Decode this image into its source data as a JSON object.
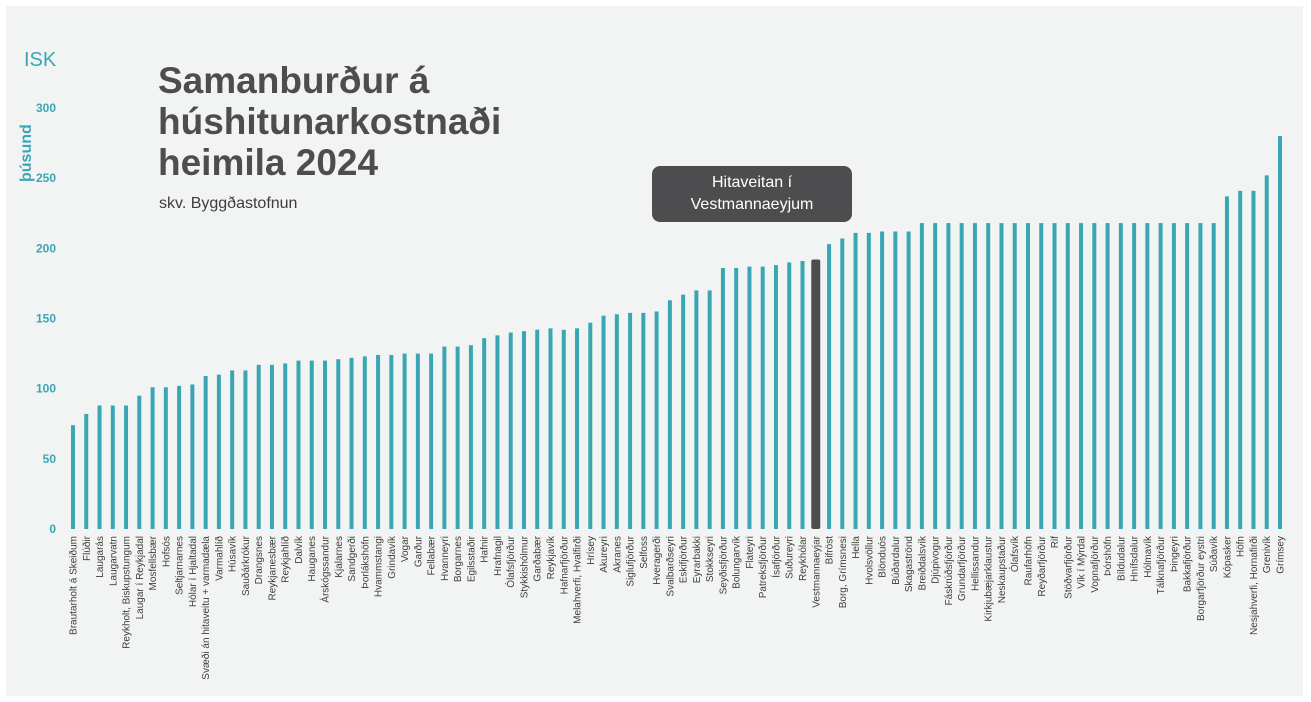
{
  "chart_data": {
    "type": "bar",
    "title_lines": [
      "Samanburður á",
      "húshitunarkostnaði",
      "heimila 2024"
    ],
    "subtitle": "skv. Byggðastofnun",
    "unit_label": "ISK",
    "ylabel": "þúsund",
    "ylim": [
      0,
      300
    ],
    "yticks": [
      0,
      50,
      100,
      150,
      200,
      250,
      300
    ],
    "grid": false,
    "highlight_category": "Vestmannaeyjar",
    "annotation": [
      "Hitaveitan í",
      "Vestmannaeyjum"
    ],
    "categories": [
      "Brautarholt á Skeiðum",
      "Flúðir",
      "Laugarás",
      "Laugarvatn",
      "Reykholt, Biskupstungum",
      "Laugar í Reykjadal",
      "Mosfellsbær",
      "Hofsós",
      "Seltjarnarnes",
      "Hólar í Hjaltadal",
      "Svæði án hitaveitu + varmadæla",
      "Varmahlíð",
      "Húsavík",
      "Sauðárkrókur",
      "Drangsnes",
      "Reykjanesbær",
      "Reykjahlíð",
      "Dalvík",
      "Hauganes",
      "Árskógssandur",
      "Kjalarnes",
      "Sandgerði",
      "Þorlákshöfn",
      "Hvammstangi",
      "Grindavík",
      "Vogar",
      "Garður",
      "Fellabær",
      "Hvanneyri",
      "Borgarnes",
      "Egilsstaðir",
      "Hafnir",
      "Hrafnagil",
      "Ólafsfjörður",
      "Stykkishólmur",
      "Garðabær",
      "Reykjavík",
      "Hafnarfjörður",
      "Melahverfi, Hvalfirði",
      "Hrísey",
      "Akureyri",
      "Akranes",
      "Siglufjörður",
      "Selfoss",
      "Hveragerði",
      "Svalbarðseyri",
      "Eskifjörður",
      "Eyrarbakki",
      "Stokkseyri",
      "Seyðisfjörður",
      "Bolungarvík",
      "Flateyri",
      "Patreksfjörður",
      "Ísafjörður",
      "Suðureyri",
      "Reykhólar",
      "Vestmannaeyjar",
      "Bifröst",
      "Borg, Grímsnesi",
      "Hella",
      "Hvolsvöllur",
      "Blönduós",
      "Búðardalur",
      "Skagaströnd",
      "Breiðdalsvík",
      "Djúpivogur",
      "Fáskrúðsfjörður",
      "Grundarfjörður",
      "Hellissandur",
      "Kirkjubæjarklaustur",
      "Neskaupstaður",
      "Ólafsvík",
      "Raufarhöfn",
      "Reyðarfjörður",
      "Rif",
      "Stöðvarfjörður",
      "Vík í Mýrdal",
      "Vopnafjörður",
      "Þórshöfn",
      "Bíldudalur",
      "Hnífsdalur",
      "Hólmavík",
      "Tálknafjörður",
      "Þingeyri",
      "Bakkafjörður",
      "Borgarfjörður eystri",
      "Súðavík",
      "Kópasker",
      "Höfn",
      "Nesjahverfi, Hornafirði",
      "Grenivík",
      "Grímsey"
    ],
    "values": [
      74,
      82,
      88,
      88,
      88,
      95,
      101,
      101,
      102,
      103,
      109,
      110,
      113,
      113,
      117,
      117,
      118,
      120,
      120,
      120,
      121,
      122,
      123,
      124,
      124,
      125,
      125,
      125,
      130,
      130,
      131,
      136,
      138,
      140,
      141,
      142,
      143,
      142,
      143,
      147,
      152,
      153,
      154,
      154,
      155,
      163,
      167,
      170,
      170,
      186,
      186,
      187,
      187,
      188,
      190,
      191,
      192,
      203,
      207,
      211,
      211,
      212,
      212,
      212,
      218,
      218,
      218,
      218,
      218,
      218,
      218,
      218,
      218,
      218,
      218,
      218,
      218,
      218,
      218,
      218,
      218,
      218,
      218,
      218,
      218,
      218,
      218,
      237,
      241,
      241,
      252,
      280
    ],
    "colors": {
      "bar": "#3aa6b5",
      "highlight": "#4d4d4f",
      "accent": "#3aa6b5",
      "title": "#4d4d4f"
    }
  }
}
